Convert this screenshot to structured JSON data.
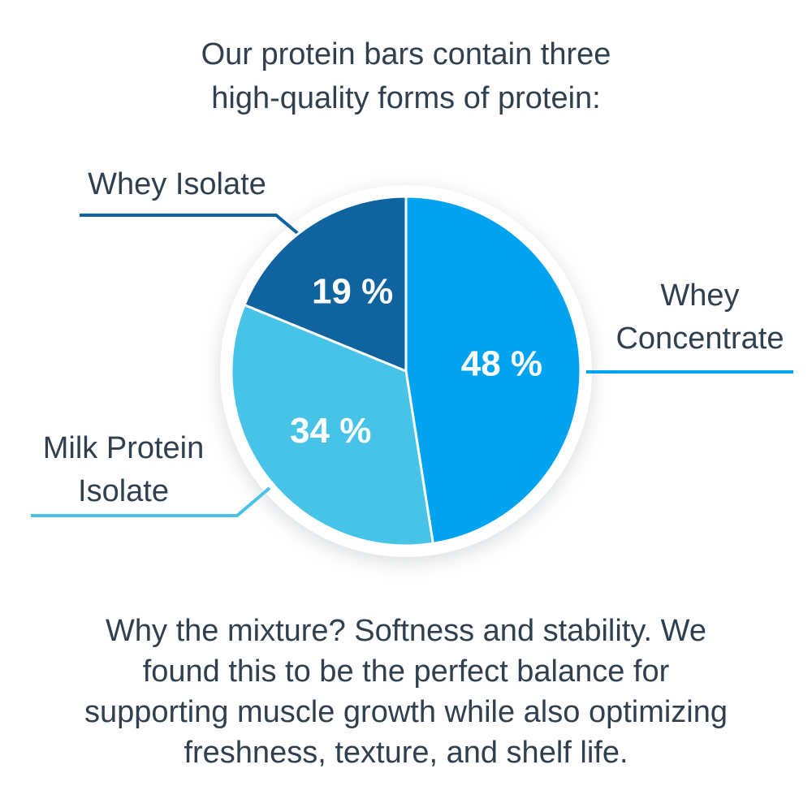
{
  "page": {
    "background_color": "#ffffff",
    "text_color": "#30404f"
  },
  "header": {
    "title": "Our protein bars contain three high-quality forms of protein:",
    "title_lines": [
      "Our protein bars contain three",
      "high-quality forms of protein:"
    ]
  },
  "chart_data": {
    "type": "pie",
    "title": "Our protein bars contain three high-quality forms of protein:",
    "categories": [
      "Whey Concentrate",
      "Milk Protein Isolate",
      "Whey Isolate"
    ],
    "values": [
      48,
      34,
      19
    ],
    "unit": "%",
    "start_angle_deg": 0,
    "direction": "clockwise",
    "value_labels_inside": true,
    "slice_divider_color": "#ffffff",
    "ring_color": "#ffffff",
    "slices": [
      {
        "label": "Whey Concentrate",
        "value": 48,
        "display": "48 %",
        "color": "#00a3f0"
      },
      {
        "label": "Milk Protein Isolate",
        "value": 34,
        "display": "34 %",
        "color": "#46c3e6"
      },
      {
        "label": "Whey Isolate",
        "value": 19,
        "display": "19 %",
        "color": "#0f639e"
      }
    ]
  },
  "footer": {
    "paragraph": "Why the mixture? Softness and stability. We found this to be the perfect balance for supporting muscle growth while also optimizing freshness, texture, and shelf life.",
    "paragraph_lines": [
      "Why the mixture? Softness and stability. We",
      "found this to be the perfect balance for",
      "supporting muscle growth while also optimizing",
      "freshness, texture, and shelf life."
    ]
  }
}
